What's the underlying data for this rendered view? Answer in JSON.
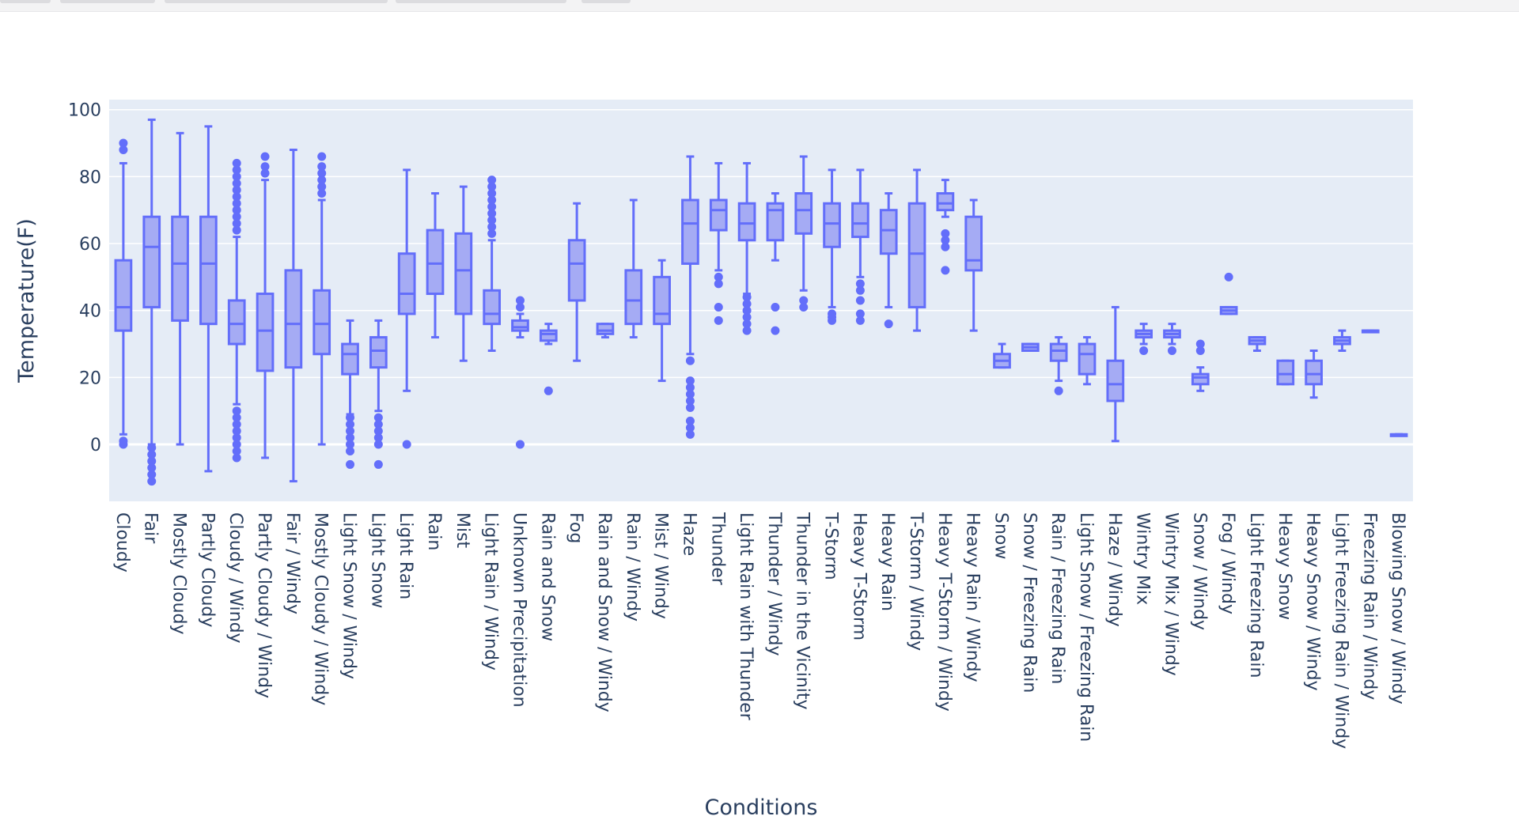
{
  "chart_data": {
    "type": "box",
    "xlabel": "Conditions",
    "ylabel": "Temperature(F)",
    "ylim": [
      -17,
      103
    ],
    "yticks": [
      0,
      20,
      40,
      60,
      80,
      100
    ],
    "grid": true,
    "colors": {
      "plot_bg": "#e5ecf6",
      "box_fill": "#a5abf4",
      "box_line": "#636efa",
      "grid": "#ffffff",
      "text": "#2a3f5f"
    },
    "series": [
      {
        "name": "Cloudy",
        "min": 3,
        "q1": 34,
        "median": 41,
        "q3": 55,
        "max": 84,
        "outliers": [
          0,
          1,
          88,
          90
        ]
      },
      {
        "name": "Fair",
        "min": 0,
        "q1": 41,
        "median": 59,
        "q3": 68,
        "max": 97,
        "outliers": [
          -1,
          -3,
          -5,
          -7,
          -9,
          -11
        ]
      },
      {
        "name": "Mostly Cloudy",
        "min": 0,
        "q1": 37,
        "median": 54,
        "q3": 68,
        "max": 93,
        "outliers": []
      },
      {
        "name": "Partly Cloudy",
        "min": -8,
        "q1": 36,
        "median": 54,
        "q3": 68,
        "max": 95,
        "outliers": []
      },
      {
        "name": "Cloudy / Windy",
        "min": 12,
        "q1": 30,
        "median": 36,
        "q3": 43,
        "max": 62,
        "outliers": [
          -4,
          -2,
          0,
          2,
          4,
          6,
          8,
          10,
          64,
          66,
          68,
          70,
          72,
          74,
          76,
          78,
          80,
          82,
          84
        ]
      },
      {
        "name": "Partly Cloudy / Windy",
        "min": -4,
        "q1": 22,
        "median": 34,
        "q3": 45,
        "max": 79,
        "outliers": [
          81,
          83,
          86
        ]
      },
      {
        "name": "Fair / Windy",
        "min": -11,
        "q1": 23,
        "median": 36,
        "q3": 52,
        "max": 88,
        "outliers": []
      },
      {
        "name": "Mostly Cloudy / Windy",
        "min": 0,
        "q1": 27,
        "median": 36,
        "q3": 46,
        "max": 73,
        "outliers": [
          75,
          77,
          79,
          81,
          83,
          86
        ]
      },
      {
        "name": "Light Snow / Windy",
        "min": 9,
        "q1": 21,
        "median": 27,
        "q3": 30,
        "max": 37,
        "outliers": [
          -6,
          -2,
          0,
          2,
          4,
          6,
          8
        ]
      },
      {
        "name": "Light Snow",
        "min": 10,
        "q1": 23,
        "median": 28,
        "q3": 32,
        "max": 37,
        "outliers": [
          -6,
          0,
          2,
          4,
          6,
          8
        ]
      },
      {
        "name": "Light Rain",
        "min": 16,
        "q1": 39,
        "median": 45,
        "q3": 57,
        "max": 82,
        "outliers": [
          0
        ]
      },
      {
        "name": "Rain",
        "min": 32,
        "q1": 45,
        "median": 54,
        "q3": 64,
        "max": 75,
        "outliers": []
      },
      {
        "name": "Mist",
        "min": 25,
        "q1": 39,
        "median": 52,
        "q3": 63,
        "max": 77,
        "outliers": []
      },
      {
        "name": "Light Rain / Windy",
        "min": 28,
        "q1": 36,
        "median": 39,
        "q3": 46,
        "max": 61,
        "outliers": [
          63,
          65,
          67,
          69,
          71,
          73,
          75,
          77,
          79
        ]
      },
      {
        "name": "Unknown Precipitation",
        "min": 32,
        "q1": 34,
        "median": 35,
        "q3": 37,
        "max": 39,
        "outliers": [
          0,
          41,
          43
        ]
      },
      {
        "name": "Rain and Snow",
        "min": 30,
        "q1": 31,
        "median": 33,
        "q3": 34,
        "max": 36,
        "outliers": [
          16
        ]
      },
      {
        "name": "Fog",
        "min": 25,
        "q1": 43,
        "median": 54,
        "q3": 61,
        "max": 72,
        "outliers": []
      },
      {
        "name": "Rain and Snow / Windy",
        "min": 32,
        "q1": 33,
        "median": 34,
        "q3": 36,
        "max": 36,
        "outliers": []
      },
      {
        "name": "Rain / Windy",
        "min": 32,
        "q1": 36,
        "median": 43,
        "q3": 52,
        "max": 73,
        "outliers": []
      },
      {
        "name": "Mist / Windy",
        "min": 19,
        "q1": 36,
        "median": 39,
        "q3": 50,
        "max": 55,
        "outliers": []
      },
      {
        "name": "Haze",
        "min": 27,
        "q1": 54,
        "median": 66,
        "q3": 73,
        "max": 86,
        "outliers": [
          3,
          5,
          7,
          11,
          13,
          15,
          17,
          19,
          25
        ]
      },
      {
        "name": "Thunder",
        "min": 52,
        "q1": 64,
        "median": 70,
        "q3": 73,
        "max": 84,
        "outliers": [
          37,
          41,
          48,
          50
        ]
      },
      {
        "name": "Light Rain with Thunder",
        "min": 45,
        "q1": 61,
        "median": 66,
        "q3": 72,
        "max": 84,
        "outliers": [
          34,
          36,
          38,
          40,
          42,
          44
        ]
      },
      {
        "name": "Thunder / Windy",
        "min": 55,
        "q1": 61,
        "median": 70,
        "q3": 72,
        "max": 75,
        "outliers": [
          34,
          41
        ]
      },
      {
        "name": "Thunder in the Vicinity",
        "min": 46,
        "q1": 63,
        "median": 70,
        "q3": 75,
        "max": 86,
        "outliers": [
          41,
          43
        ]
      },
      {
        "name": "T-Storm",
        "min": 41,
        "q1": 59,
        "median": 66,
        "q3": 72,
        "max": 82,
        "outliers": [
          37,
          38,
          39
        ]
      },
      {
        "name": "Heavy T-Storm",
        "min": 50,
        "q1": 62,
        "median": 66,
        "q3": 72,
        "max": 82,
        "outliers": [
          37,
          39,
          43,
          46,
          48
        ]
      },
      {
        "name": "Heavy Rain",
        "min": 41,
        "q1": 57,
        "median": 64,
        "q3": 70,
        "max": 75,
        "outliers": [
          36
        ]
      },
      {
        "name": "T-Storm / Windy",
        "min": 34,
        "q1": 41,
        "median": 57,
        "q3": 72,
        "max": 82,
        "outliers": []
      },
      {
        "name": "Heavy T-Storm / Windy",
        "min": 68,
        "q1": 70,
        "median": 72,
        "q3": 75,
        "max": 79,
        "outliers": [
          52,
          59,
          61,
          63
        ]
      },
      {
        "name": "Heavy Rain / Windy",
        "min": 34,
        "q1": 52,
        "median": 55,
        "q3": 68,
        "max": 73,
        "outliers": []
      },
      {
        "name": "Snow",
        "min": 23,
        "q1": 23,
        "median": 25,
        "q3": 27,
        "max": 30,
        "outliers": []
      },
      {
        "name": "Snow / Freezing Rain",
        "min": 28,
        "q1": 28,
        "median": 29,
        "q3": 30,
        "max": 30,
        "outliers": []
      },
      {
        "name": "Rain / Freezing Rain",
        "min": 19,
        "q1": 25,
        "median": 28,
        "q3": 30,
        "max": 32,
        "outliers": [
          16
        ]
      },
      {
        "name": "Light Snow / Freezing Rain",
        "min": 18,
        "q1": 21,
        "median": 27,
        "q3": 30,
        "max": 32,
        "outliers": []
      },
      {
        "name": "Haze / Windy",
        "min": 1,
        "q1": 13,
        "median": 18,
        "q3": 25,
        "max": 41,
        "outliers": []
      },
      {
        "name": "Wintry Mix",
        "min": 30,
        "q1": 32,
        "median": 33,
        "q3": 34,
        "max": 36,
        "outliers": [
          28
        ]
      },
      {
        "name": "Wintry Mix / Windy",
        "min": 30,
        "q1": 32,
        "median": 33,
        "q3": 34,
        "max": 36,
        "outliers": [
          28
        ]
      },
      {
        "name": "Snow / Windy",
        "min": 16,
        "q1": 18,
        "median": 20,
        "q3": 21,
        "max": 23,
        "outliers": [
          28,
          30
        ]
      },
      {
        "name": "Fog / Windy",
        "min": 39,
        "q1": 39,
        "median": 40,
        "q3": 41,
        "max": 41,
        "outliers": [
          50
        ]
      },
      {
        "name": "Light Freezing Rain",
        "min": 28,
        "q1": 30,
        "median": 31,
        "q3": 32,
        "max": 32,
        "outliers": []
      },
      {
        "name": "Heavy Snow",
        "min": 18,
        "q1": 18,
        "median": 21,
        "q3": 25,
        "max": 25,
        "outliers": []
      },
      {
        "name": "Heavy Snow / Windy",
        "min": 14,
        "q1": 18,
        "median": 21,
        "q3": 25,
        "max": 28,
        "outliers": []
      },
      {
        "name": "Light Freezing Rain / Windy",
        "min": 28,
        "q1": 30,
        "median": 31,
        "q3": 32,
        "max": 34,
        "outliers": []
      },
      {
        "name": "Freezing Rain / Windy",
        "min": 34,
        "q1": 34,
        "median": 34,
        "q3": 34,
        "max": 34,
        "outliers": []
      },
      {
        "name": "Blowing Snow / Windy",
        "min": 3,
        "q1": 3,
        "median": 3,
        "q3": 3,
        "max": 3,
        "outliers": []
      }
    ]
  }
}
